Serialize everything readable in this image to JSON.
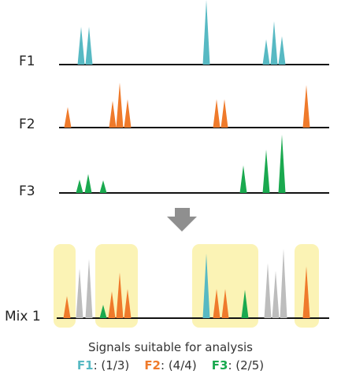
{
  "colors": {
    "F1": "#57b9c3",
    "F2": "#ef7a2b",
    "F3": "#1aa94f",
    "other": "#bdbdbd",
    "highlight": "#fbf3b5",
    "baseline": "#111111",
    "arrow": "#8f8f8f"
  },
  "rows": [
    {
      "id": "F1",
      "label": "F1"
    },
    {
      "id": "F2",
      "label": "F2"
    },
    {
      "id": "F3",
      "label": "F3"
    },
    {
      "id": "mix1",
      "label": "Mix 1"
    }
  ],
  "caption": "Signals suitable for analysis",
  "legend": [
    {
      "id": "F1",
      "key": "F1",
      "value": ": (1/3)"
    },
    {
      "id": "F2",
      "key": "F2",
      "value": ": (4/4)"
    },
    {
      "id": "F3",
      "key": "F3",
      "value": ": (2/5)"
    }
  ],
  "icons": {
    "flow_arrow": "down-arrow-icon"
  }
}
